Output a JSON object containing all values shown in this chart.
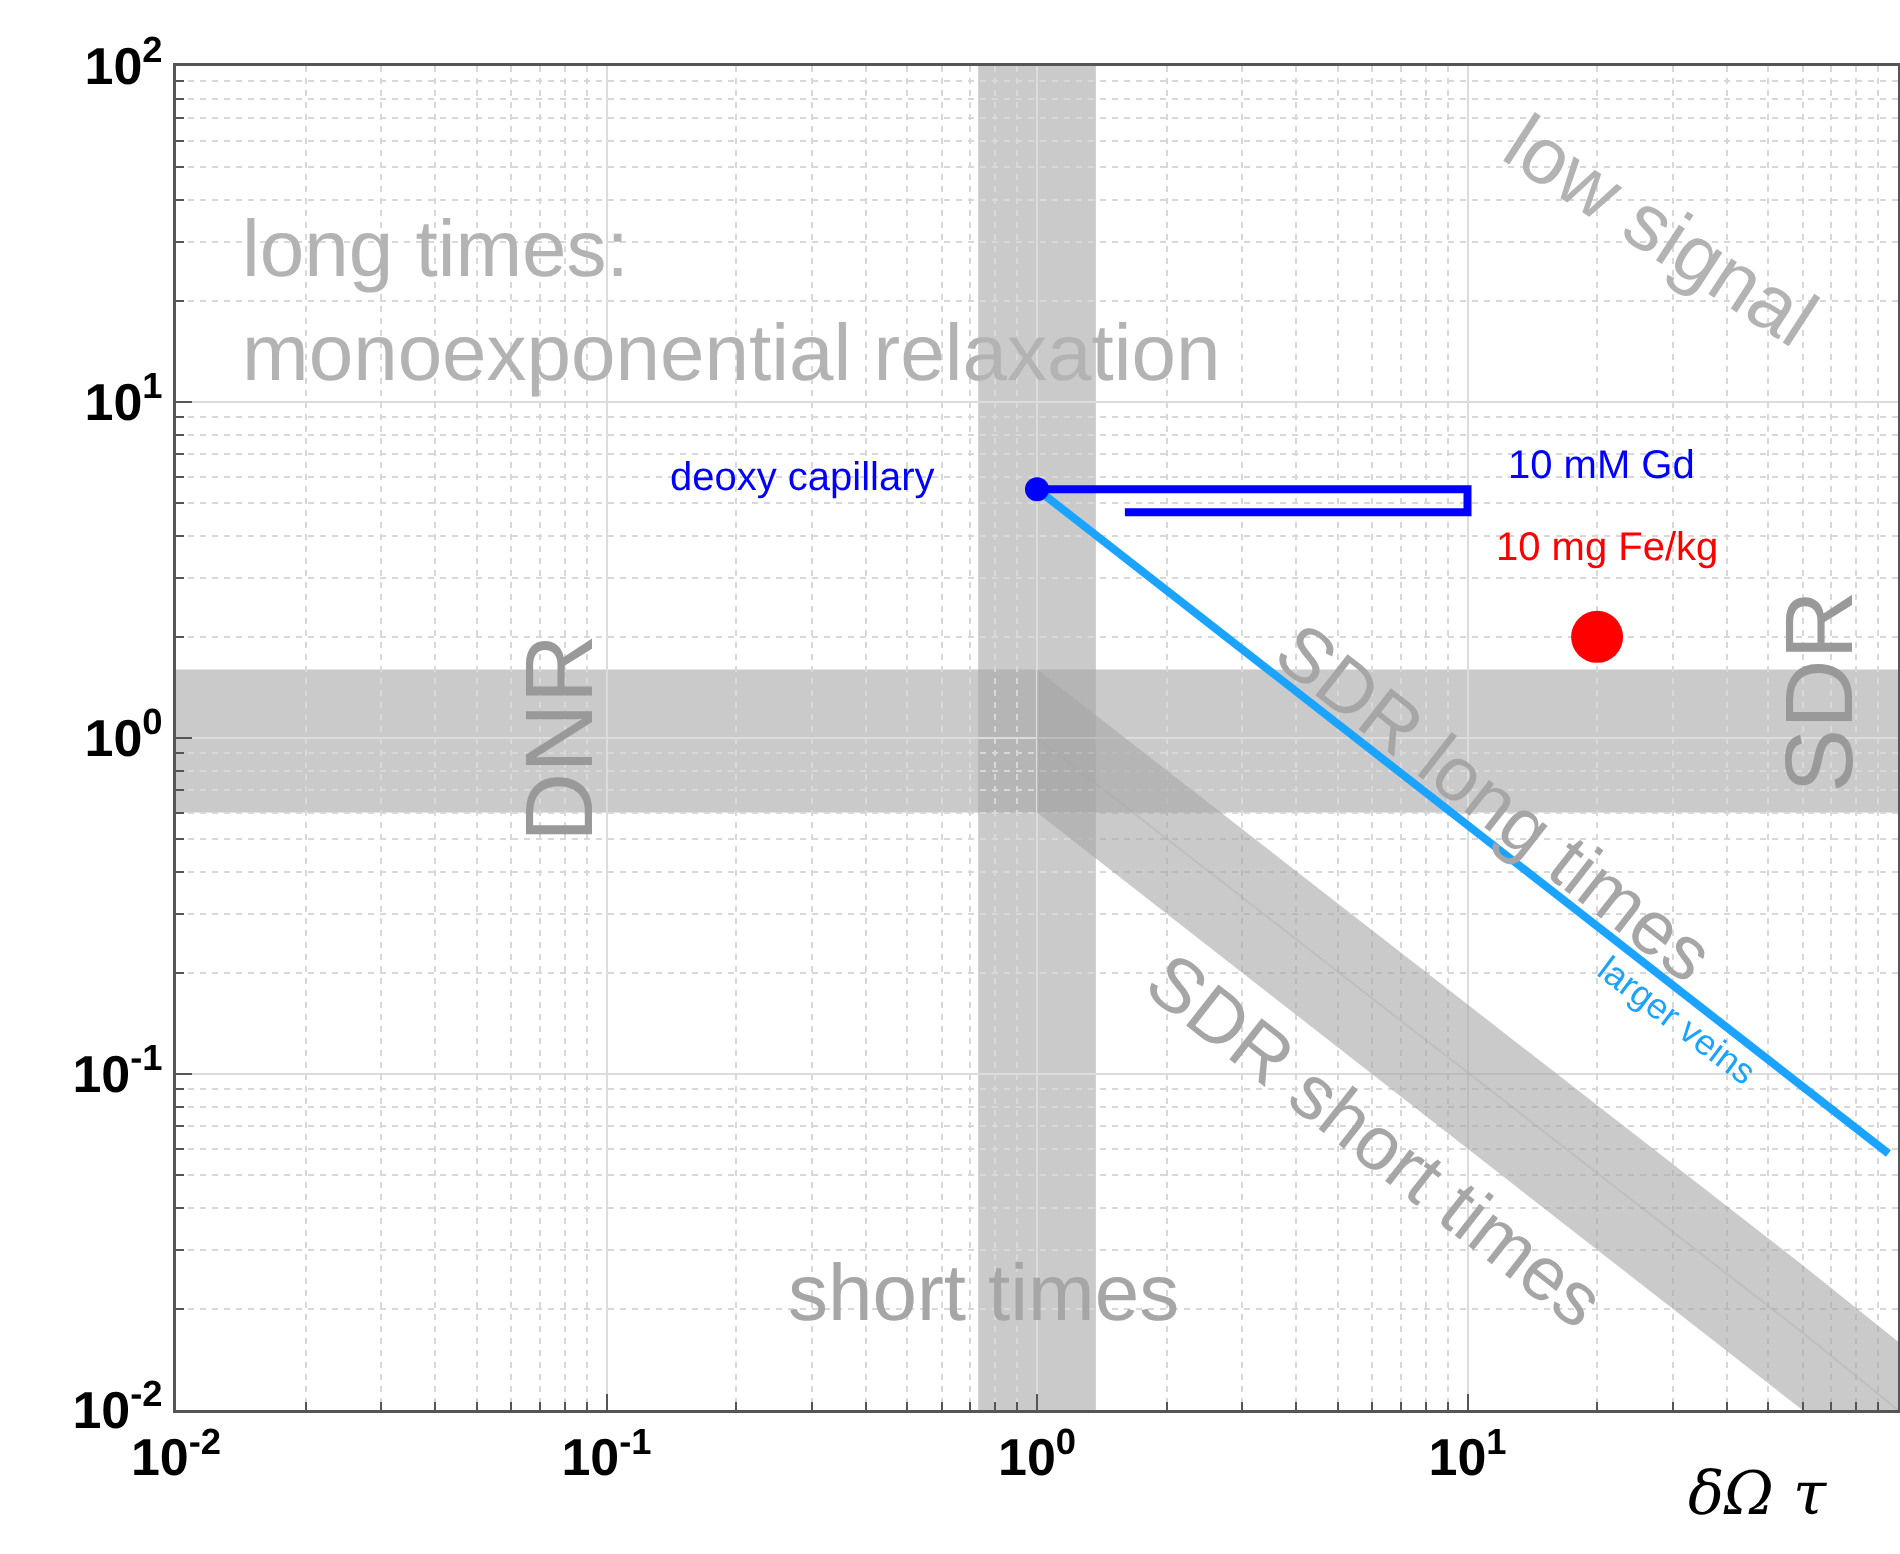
{
  "chart_data": {
    "type": "line",
    "xlabel": "δΩ τ",
    "log": "xy",
    "grid": true,
    "xlim": [
      0.01,
      100
    ],
    "ylim": [
      0.01,
      100
    ],
    "xticks": [
      {
        "value": 0.01,
        "label": "10$^{-2}$"
      },
      {
        "value": 0.1,
        "label": "10$^{-1}$"
      },
      {
        "value": 1,
        "label": "10$^{0}$"
      },
      {
        "value": 10,
        "label": "10$^{1}$"
      }
    ],
    "yticks": [
      {
        "value": 0.01,
        "label": "10$^{-2}$"
      },
      {
        "value": 0.1,
        "label": "10$^{-1}$"
      },
      {
        "value": 1,
        "label": "10$^{0}$"
      },
      {
        "value": 10,
        "label": "10$^{1}$"
      },
      {
        "value": 100,
        "label": "10$^{2}$"
      }
    ],
    "bands": [
      {
        "axis": "x",
        "from": 0.73,
        "to": 1.37,
        "color": "#a6a6a6"
      },
      {
        "axis": "y",
        "from": 0.6,
        "to": 1.6,
        "color": "#a6a6a6"
      }
    ],
    "series": [
      {
        "color": "#a6a6a6",
        "x": [
          1,
          60,
          100
        ],
        "values": [
          1,
          0.017,
          0.01
        ],
        "lower": [
          0.6,
          0.01,
          0.01
        ],
        "upper": [
          1.6,
          0.027,
          0.016
        ],
        "marker": "none"
      },
      {
        "color": "#1aa3ff",
        "x": [
          1,
          95
        ],
        "values": [
          5.5,
          0.058
        ],
        "marker": "none"
      },
      {
        "color": "#0000ff",
        "x": [
          1,
          10,
          10,
          1.6
        ],
        "values": [
          5.5,
          5.5,
          4.7,
          4.7
        ],
        "marker": "none"
      },
      {
        "type": "scatter",
        "color": "#0000ff",
        "x": [
          1
        ],
        "values": [
          5.5
        ],
        "marker": "circle"
      },
      {
        "type": "scatter",
        "color": "#ff0000",
        "x": [
          20
        ],
        "values": [
          2
        ],
        "marker": "circle"
      }
    ],
    "annotations": [
      "long times:\nmonoexponential relaxation",
      "low signal",
      "DNR",
      "SDR",
      {
        "text": "SDR long times",
        "x": 11.5,
        "y": 0.64
      },
      "SDR short times",
      {
        "text": "short times",
        "x": 0.75,
        "y": 0.022
      },
      "deoxy capillary",
      "10 mM Gd",
      "10 mg Fe/kg",
      {
        "text": "larger veins",
        "x": 28,
        "y": 0.196
      }
    ]
  }
}
